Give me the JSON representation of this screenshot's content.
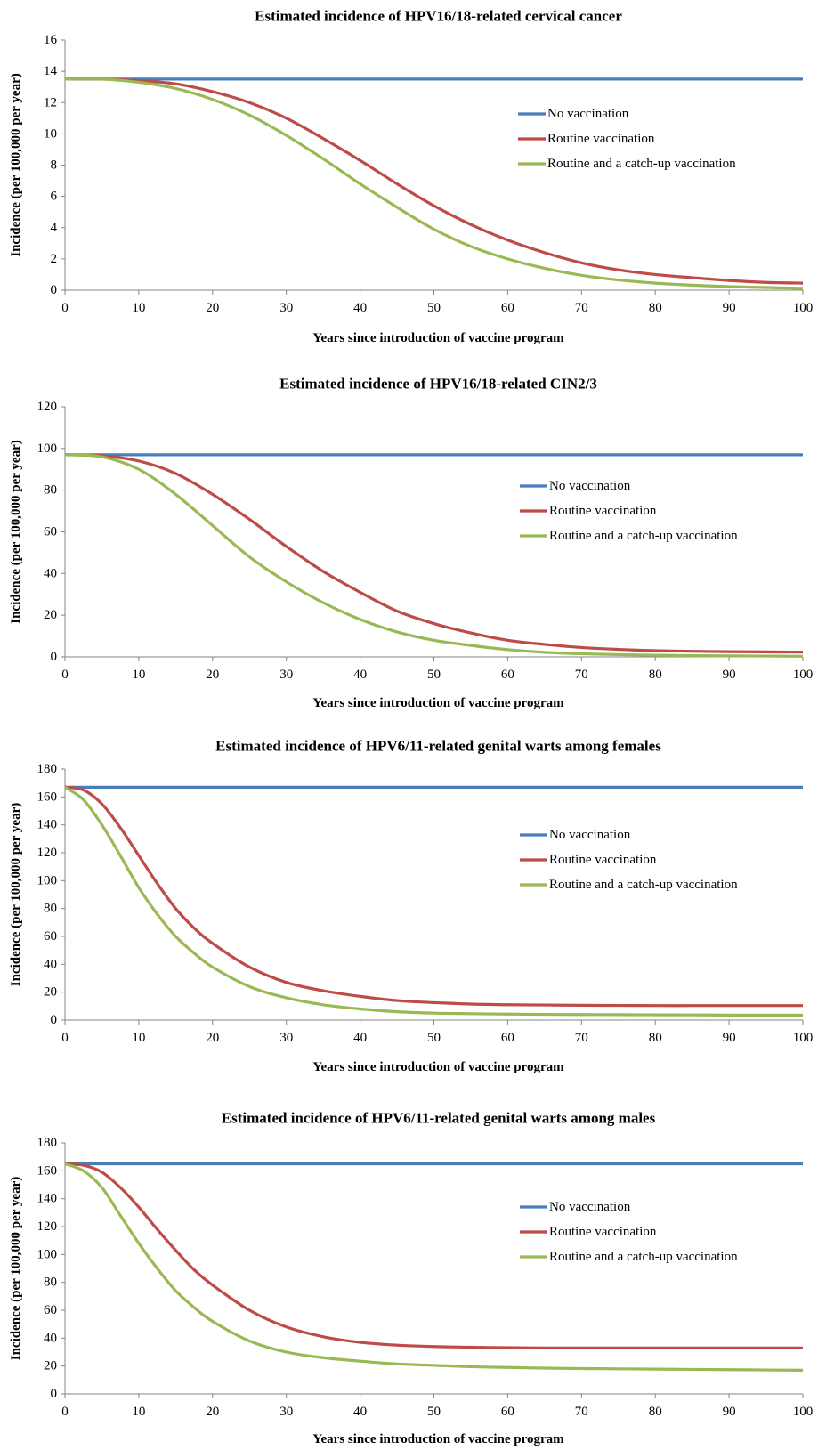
{
  "chart_data": [
    {
      "type": "line",
      "title": "Estimated incidence of HPV16/18-related cervical cancer",
      "xlabel": "Years since introduction of vaccine program",
      "ylabel": "Incidence (per 100,000 per year)",
      "xlim": [
        0,
        100
      ],
      "ylim": [
        0,
        16
      ],
      "xticks": [
        0,
        10,
        20,
        30,
        40,
        50,
        60,
        70,
        80,
        90,
        100
      ],
      "yticks": [
        0,
        2,
        4,
        6,
        8,
        10,
        12,
        14,
        16
      ],
      "grid": false,
      "legend_position": "right",
      "x": [
        0,
        5,
        10,
        15,
        20,
        25,
        30,
        35,
        40,
        45,
        50,
        55,
        60,
        65,
        70,
        75,
        80,
        85,
        90,
        95,
        100
      ],
      "series": [
        {
          "name": "No vaccination",
          "color": "#4A7EBB",
          "values": [
            13.5,
            13.5,
            13.5,
            13.5,
            13.5,
            13.5,
            13.5,
            13.5,
            13.5,
            13.5,
            13.5,
            13.5,
            13.5,
            13.5,
            13.5,
            13.5,
            13.5,
            13.5,
            13.5,
            13.5,
            13.5
          ]
        },
        {
          "name": "Routine vaccination",
          "color": "#BE4B48",
          "values": [
            13.5,
            13.5,
            13.4,
            13.2,
            12.7,
            12.0,
            11.0,
            9.7,
            8.3,
            6.8,
            5.4,
            4.2,
            3.2,
            2.4,
            1.75,
            1.3,
            1.0,
            0.8,
            0.62,
            0.5,
            0.45
          ]
        },
        {
          "name": "Routine and a catch-up vaccination",
          "color": "#98B954",
          "values": [
            13.5,
            13.5,
            13.3,
            12.9,
            12.2,
            11.2,
            9.9,
            8.4,
            6.8,
            5.3,
            3.9,
            2.8,
            2.0,
            1.4,
            0.95,
            0.65,
            0.45,
            0.32,
            0.23,
            0.17,
            0.12
          ]
        }
      ]
    },
    {
      "type": "line",
      "title": "Estimated incidence of HPV16/18-related CIN2/3",
      "xlabel": "Years since introduction of vaccine program",
      "ylabel": "Incidence (per 100,000 per year)",
      "xlim": [
        0,
        100
      ],
      "ylim": [
        0,
        120
      ],
      "xticks": [
        0,
        10,
        20,
        30,
        40,
        50,
        60,
        70,
        80,
        90,
        100
      ],
      "yticks": [
        0,
        20,
        40,
        60,
        80,
        100,
        120
      ],
      "grid": false,
      "legend_position": "right",
      "x": [
        0,
        5,
        10,
        15,
        20,
        25,
        30,
        35,
        40,
        45,
        50,
        55,
        60,
        65,
        70,
        75,
        80,
        85,
        90,
        95,
        100
      ],
      "series": [
        {
          "name": "No vaccination",
          "color": "#4A7EBB",
          "values": [
            97,
            97,
            97,
            97,
            97,
            97,
            97,
            97,
            97,
            97,
            97,
            97,
            97,
            97,
            97,
            97,
            97,
            97,
            97,
            97,
            97
          ]
        },
        {
          "name": "Routine vaccination",
          "color": "#BE4B48",
          "values": [
            97,
            96.5,
            94,
            88,
            78,
            66,
            53,
            41,
            31,
            22,
            16,
            11.5,
            8,
            6,
            4.5,
            3.6,
            3,
            2.7,
            2.5,
            2.4,
            2.3
          ]
        },
        {
          "name": "Routine and a catch-up vaccination",
          "color": "#98B954",
          "values": [
            97,
            96,
            90,
            78,
            63,
            48,
            36,
            26,
            18,
            12,
            8,
            5.5,
            3.5,
            2.2,
            1.5,
            1.1,
            0.8,
            0.6,
            0.5,
            0.4,
            0.3
          ]
        }
      ]
    },
    {
      "type": "line",
      "title": "Estimated incidence of HPV6/11-related genital warts among females",
      "xlabel": "Years since introduction of vaccine program",
      "ylabel": "Incidence (per 100,000 per year)",
      "xlim": [
        0,
        100
      ],
      "ylim": [
        0,
        180
      ],
      "xticks": [
        0,
        10,
        20,
        30,
        40,
        50,
        60,
        70,
        80,
        90,
        100
      ],
      "yticks": [
        0,
        20,
        40,
        60,
        80,
        100,
        120,
        140,
        160,
        180
      ],
      "grid": false,
      "legend_position": "right",
      "x": [
        0,
        2.5,
        5,
        7.5,
        10,
        12.5,
        15,
        17.5,
        20,
        25,
        30,
        35,
        40,
        45,
        50,
        55,
        60,
        65,
        70,
        75,
        80,
        85,
        90,
        95,
        100
      ],
      "series": [
        {
          "name": "No vaccination",
          "color": "#4A7EBB",
          "values": [
            167,
            167,
            167,
            167,
            167,
            167,
            167,
            167,
            167,
            167,
            167,
            167,
            167,
            167,
            167,
            167,
            167,
            167,
            167,
            167,
            167,
            167,
            167,
            167,
            167
          ]
        },
        {
          "name": "Routine vaccination",
          "color": "#BE4B48",
          "values": [
            167,
            165,
            155,
            138,
            118,
            98,
            80,
            66,
            55,
            38,
            27,
            21,
            17,
            14,
            12.5,
            11.5,
            11,
            10.8,
            10.6,
            10.5,
            10.4,
            10.4,
            10.4,
            10.4,
            10.4
          ]
        },
        {
          "name": "Routine and a catch-up vaccination",
          "color": "#98B954",
          "values": [
            167,
            158,
            140,
            118,
            95,
            76,
            60,
            48,
            38,
            24,
            16,
            11,
            8,
            6,
            5,
            4.6,
            4.3,
            4.1,
            4,
            3.9,
            3.8,
            3.7,
            3.6,
            3.5,
            3.5
          ]
        }
      ]
    },
    {
      "type": "line",
      "title": "Estimated incidence of HPV6/11-related genital warts among males",
      "xlabel": "Years since introduction of vaccine program",
      "ylabel": "Incidence (per 100,000 per year)",
      "xlim": [
        0,
        100
      ],
      "ylim": [
        0,
        180
      ],
      "xticks": [
        0,
        10,
        20,
        30,
        40,
        50,
        60,
        70,
        80,
        90,
        100
      ],
      "yticks": [
        0,
        20,
        40,
        60,
        80,
        100,
        120,
        140,
        160,
        180
      ],
      "grid": false,
      "legend_position": "right",
      "x": [
        0,
        2.5,
        5,
        7.5,
        10,
        12.5,
        15,
        17.5,
        20,
        25,
        30,
        35,
        40,
        45,
        50,
        55,
        60,
        65,
        70,
        75,
        80,
        85,
        90,
        95,
        100
      ],
      "series": [
        {
          "name": "No vaccination",
          "color": "#4A7EBB",
          "values": [
            165,
            165,
            165,
            165,
            165,
            165,
            165,
            165,
            165,
            165,
            165,
            165,
            165,
            165,
            165,
            165,
            165,
            165,
            165,
            165,
            165,
            165,
            165,
            165,
            165
          ]
        },
        {
          "name": "Routine vaccination",
          "color": "#BE4B48",
          "values": [
            165,
            164,
            159,
            148,
            134,
            118,
            103,
            89,
            78,
            60,
            48,
            41,
            37,
            35,
            34,
            33.5,
            33.2,
            33,
            33,
            33,
            33,
            33,
            33,
            33,
            33
          ]
        },
        {
          "name": "Routine and a catch-up vaccination",
          "color": "#98B954",
          "values": [
            165,
            160,
            148,
            128,
            108,
            90,
            74,
            62,
            52,
            38,
            30,
            26,
            23.5,
            21.5,
            20.5,
            19.5,
            19,
            18.5,
            18.2,
            18,
            17.8,
            17.6,
            17.4,
            17.2,
            17
          ]
        }
      ]
    }
  ]
}
